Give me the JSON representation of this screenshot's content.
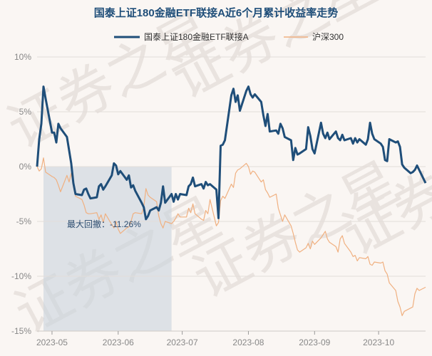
{
  "chart_data": {
    "type": "line",
    "title": "国泰上证180金融ETF联接A近6个月累计收益率走势",
    "legend_position": "top-center",
    "xlabel": "",
    "ylabel": "",
    "y_unit": "%",
    "ylim": [
      -15,
      10
    ],
    "grid": true,
    "yticks": [
      {
        "value": 10,
        "label": "10%"
      },
      {
        "value": 5,
        "label": "5%"
      },
      {
        "value": 0,
        "label": "0%"
      },
      {
        "value": -5,
        "label": "-5%"
      },
      {
        "value": -10,
        "label": "-10%"
      },
      {
        "value": -15,
        "label": "-15%"
      }
    ],
    "xticks": [
      {
        "date": "2023-05-01",
        "label": "2023-05"
      },
      {
        "date": "2023-06-01",
        "label": "2023-06"
      },
      {
        "date": "2023-07-01",
        "label": "2023-07"
      },
      {
        "date": "2023-08-01",
        "label": "2023-08"
      },
      {
        "date": "2023-09-01",
        "label": "2023-09"
      },
      {
        "date": "2023-10-01",
        "label": "2023-10"
      }
    ],
    "x": [
      "2023-04-24",
      "2023-04-25",
      "2023-04-26",
      "2023-04-27",
      "2023-04-28",
      "2023-05-01",
      "2023-05-02",
      "2023-05-03",
      "2023-05-04",
      "2023-05-05",
      "2023-05-08",
      "2023-05-09",
      "2023-05-10",
      "2023-05-11",
      "2023-05-12",
      "2023-05-15",
      "2023-05-16",
      "2023-05-17",
      "2023-05-18",
      "2023-05-19",
      "2023-05-22",
      "2023-05-23",
      "2023-05-24",
      "2023-05-25",
      "2023-05-26",
      "2023-05-29",
      "2023-05-30",
      "2023-05-31",
      "2023-06-01",
      "2023-06-02",
      "2023-06-05",
      "2023-06-06",
      "2023-06-07",
      "2023-06-08",
      "2023-06-09",
      "2023-06-12",
      "2023-06-13",
      "2023-06-14",
      "2023-06-15",
      "2023-06-16",
      "2023-06-19",
      "2023-06-20",
      "2023-06-21",
      "2023-06-22",
      "2023-06-23",
      "2023-06-26",
      "2023-06-27",
      "2023-06-28",
      "2023-06-29",
      "2023-06-30",
      "2023-07-03",
      "2023-07-04",
      "2023-07-05",
      "2023-07-06",
      "2023-07-07",
      "2023-07-10",
      "2023-07-11",
      "2023-07-12",
      "2023-07-13",
      "2023-07-14",
      "2023-07-17",
      "2023-07-18",
      "2023-07-19",
      "2023-07-20",
      "2023-07-21",
      "2023-07-24",
      "2023-07-25",
      "2023-07-26",
      "2023-07-27",
      "2023-07-28",
      "2023-07-31",
      "2023-08-01",
      "2023-08-02",
      "2023-08-03",
      "2023-08-04",
      "2023-08-07",
      "2023-08-08",
      "2023-08-09",
      "2023-08-10",
      "2023-08-11",
      "2023-08-14",
      "2023-08-15",
      "2023-08-16",
      "2023-08-17",
      "2023-08-18",
      "2023-08-21",
      "2023-08-22",
      "2023-08-23",
      "2023-08-24",
      "2023-08-25",
      "2023-08-28",
      "2023-08-29",
      "2023-08-30",
      "2023-08-31",
      "2023-09-01",
      "2023-09-04",
      "2023-09-05",
      "2023-09-06",
      "2023-09-07",
      "2023-09-08",
      "2023-09-11",
      "2023-09-12",
      "2023-09-13",
      "2023-09-14",
      "2023-09-15",
      "2023-09-18",
      "2023-09-19",
      "2023-09-20",
      "2023-09-21",
      "2023-09-22",
      "2023-09-25",
      "2023-09-26",
      "2023-09-27",
      "2023-09-28",
      "2023-09-29",
      "2023-10-02",
      "2023-10-03",
      "2023-10-04",
      "2023-10-05",
      "2023-10-06",
      "2023-10-09",
      "2023-10-10",
      "2023-10-11",
      "2023-10-12",
      "2023-10-13",
      "2023-10-16",
      "2023-10-17",
      "2023-10-18",
      "2023-10-19",
      "2023-10-20",
      "2023-10-23"
    ],
    "series": [
      {
        "name": "国泰上证180金融ETF联接A",
        "color": "#1f4e79",
        "values": [
          0.0,
          2.5,
          3.9,
          7.3,
          6.2,
          3.1,
          3.1,
          2.2,
          3.9,
          3.5,
          2.7,
          1.5,
          0.3,
          -1.5,
          -2.5,
          -2.6,
          -2.1,
          -2.0,
          -2.5,
          -2.9,
          -2.8,
          -1.8,
          -1.6,
          -2.1,
          -1.8,
          -0.8,
          0.3,
          0.1,
          -0.7,
          -0.4,
          -1.2,
          -0.8,
          -1.9,
          -1.7,
          -2.2,
          -3.3,
          -3.7,
          -4.8,
          -4.5,
          -4.0,
          -3.7,
          -4.0,
          -3.3,
          -1.8,
          -3.3,
          -2.5,
          -3.2,
          -2.5,
          -3.0,
          -2.5,
          -2.6,
          -1.8,
          -1.6,
          -1.0,
          -1.8,
          -1.6,
          -2.0,
          -1.4,
          -1.7,
          -1.6,
          -2.1,
          -4.7,
          1.9,
          2.0,
          2.4,
          6.5,
          7.1,
          5.9,
          6.5,
          5.1,
          6.9,
          7.3,
          6.6,
          6.3,
          6.6,
          5.9,
          4.7,
          3.7,
          4.8,
          3.2,
          3.3,
          3.0,
          3.9,
          3.5,
          2.7,
          2.4,
          0.6,
          1.7,
          1.1,
          1.2,
          1.6,
          3.6,
          2.8,
          1.6,
          1.2,
          4.0,
          3.0,
          2.6,
          3.1,
          2.5,
          3.2,
          2.6,
          2.4,
          2.9,
          2.4,
          2.6,
          2.1,
          2.6,
          2.2,
          2.5,
          2.0,
          2.5,
          4.0,
          3.0,
          2.5,
          2.1,
          1.8,
          0.6,
          0.5,
          2.5,
          2.2,
          2.3,
          1.8,
          0.2,
          -0.1,
          -0.6,
          -0.5,
          -0.3,
          0.1,
          -0.3,
          -1.5
        ]
      },
      {
        "name": "沪深300",
        "color": "#f0b080",
        "values": [
          0.0,
          -0.4,
          -0.2,
          0.8,
          -0.5,
          -0.9,
          -1.0,
          -1.2,
          -1.7,
          -2.3,
          -0.8,
          -1.4,
          -0.6,
          -1.8,
          -2.7,
          -3.0,
          -3.5,
          -4.2,
          -4.3,
          -4.3,
          -4.2,
          -4.8,
          -4.4,
          -5.1,
          -4.3,
          -5.3,
          -5.6,
          -5.0,
          -5.7,
          -6.1,
          -5.6,
          -5.5,
          -5.0,
          -4.3,
          -4.2,
          -4.3,
          -3.7,
          -2.0,
          -2.6,
          -2.8,
          -3.2,
          -4.5,
          -5.2,
          -5.6,
          -5.0,
          -5.2,
          -5.0,
          -4.7,
          -4.3,
          -4.6,
          -4.6,
          -3.8,
          -4.2,
          -3.4,
          -4.3,
          -4.8,
          -4.9,
          -4.0,
          -4.3,
          -3.0,
          -5.4,
          -5.1,
          -3.1,
          -2.7,
          -2.9,
          -1.6,
          -1.9,
          -0.6,
          -0.3,
          -0.2,
          0.3,
          0.0,
          -0.7,
          -0.4,
          -0.5,
          -1.4,
          -1.2,
          -2.1,
          -2.4,
          -2.8,
          -2.5,
          -3.8,
          -4.4,
          -5.0,
          -4.4,
          -5.4,
          -6.1,
          -6.9,
          -7.6,
          -7.8,
          -7.4,
          -7.0,
          -7.5,
          -6.8,
          -7.1,
          -6.5,
          -6.2,
          -5.9,
          -6.6,
          -6.9,
          -7.3,
          -7.8,
          -6.6,
          -6.3,
          -7.0,
          -7.8,
          -8.2,
          -8.1,
          -8.6,
          -8.3,
          -8.4,
          -8.2,
          -8.9,
          -9.0,
          -8.7,
          -8.8,
          -8.7,
          -9.5,
          -9.8,
          -10.6,
          -11.3,
          -12.3,
          -12.8,
          -13.6,
          -13.2,
          -12.9,
          -12.8,
          -11.6,
          -11.1,
          -11.3,
          -11.0
        ]
      }
    ],
    "max_drawdown": {
      "start": "2023-04-27",
      "end": "2023-06-26",
      "label": "最大回撤：-11.26%",
      "shade_color": "#c9d4dd"
    },
    "watermark": "证券之星"
  }
}
